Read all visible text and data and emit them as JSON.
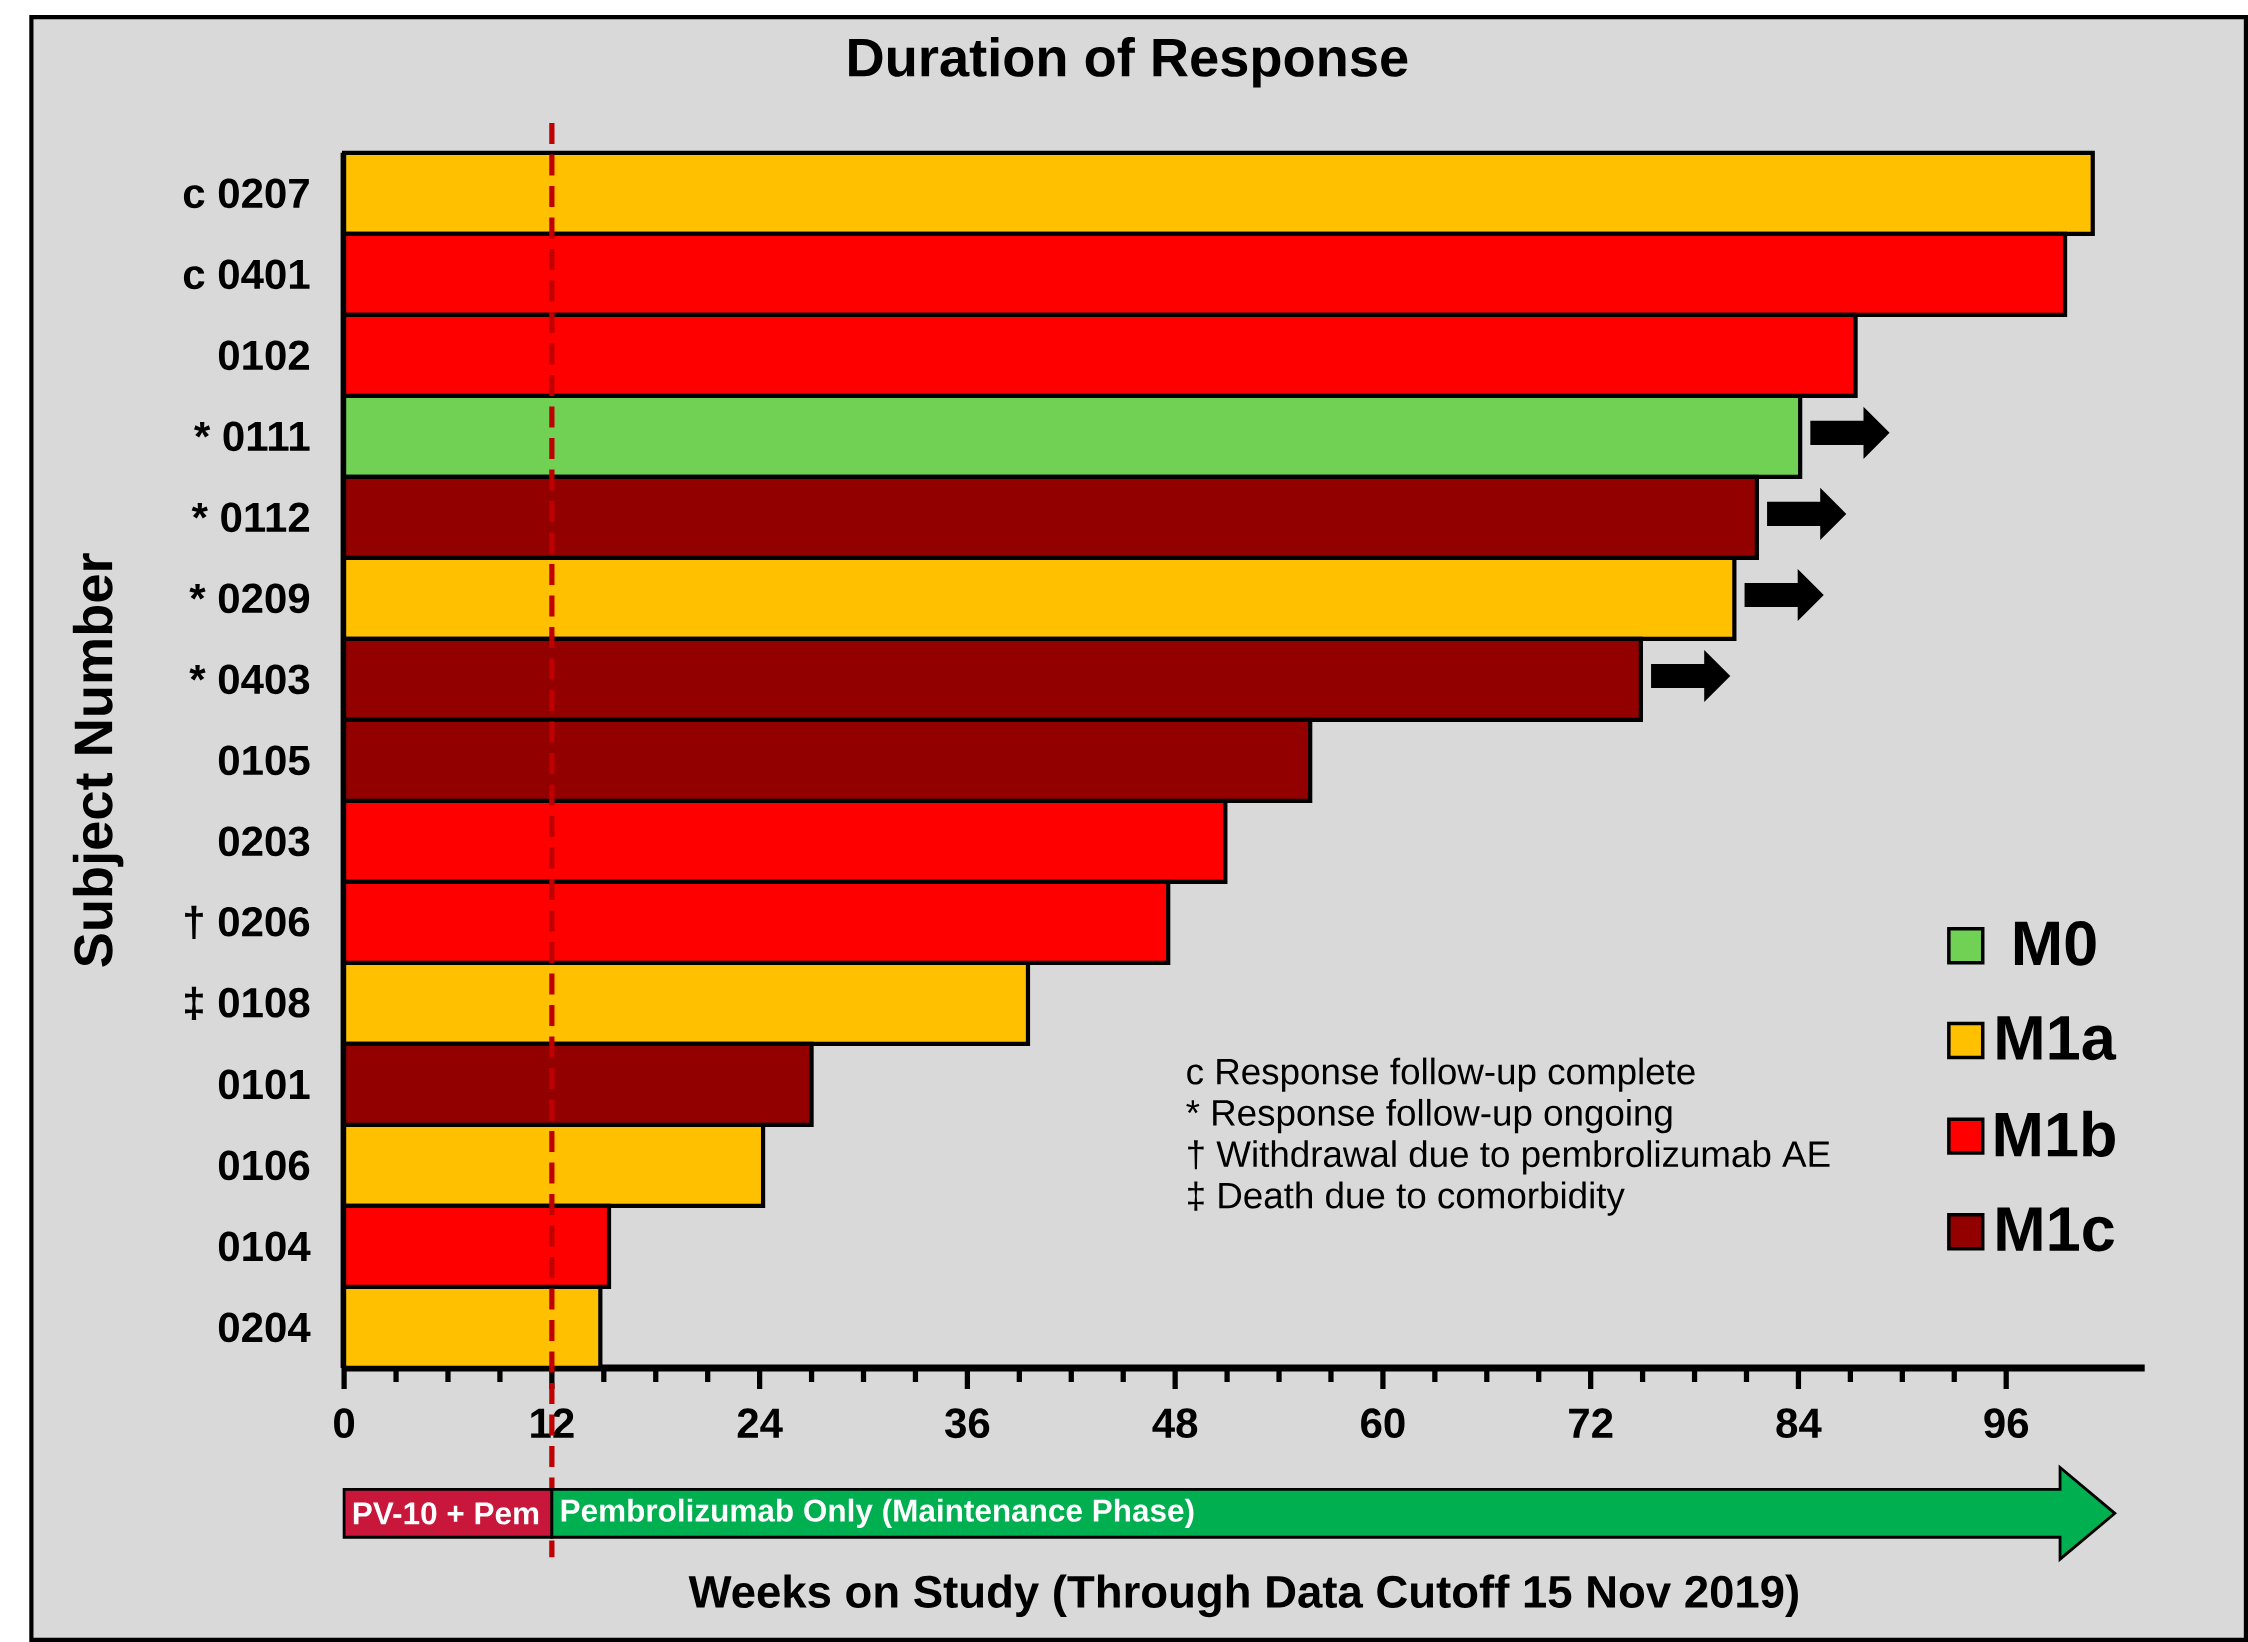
{
  "chart_data": {
    "type": "bar",
    "orientation": "horizontal",
    "title": "Duration of Response",
    "xlabel": "Weeks on Study (Through Data Cutoff 15 Nov 2019)",
    "ylabel": "Subject Number",
    "categories": [
      "c 0207",
      "c 0401",
      "0102",
      "* 0111",
      "* 0112",
      "* 0209",
      "* 0403",
      "0105",
      "0203",
      "† 0206",
      "‡ 0108",
      "0101",
      "0106",
      "0104",
      "0204"
    ],
    "series": [
      {
        "name": "M0",
        "color": "#70d155",
        "values": [
          null,
          null,
          null,
          84.1,
          null,
          null,
          null,
          null,
          null,
          null,
          null,
          null,
          null,
          null,
          null
        ]
      },
      {
        "name": "M1a",
        "color": "#ffc000",
        "values": [
          101,
          null,
          null,
          null,
          null,
          80.3,
          null,
          null,
          null,
          null,
          39.5,
          null,
          24.2,
          null,
          14.8
        ]
      },
      {
        "name": "M1b",
        "color": "#ff0000",
        "values": [
          null,
          99.4,
          87.3,
          null,
          null,
          null,
          null,
          null,
          50.9,
          47.6,
          null,
          null,
          null,
          15.3,
          null
        ]
      },
      {
        "name": "M1c",
        "color": "#920000",
        "values": [
          null,
          null,
          null,
          null,
          81.6,
          null,
          74.9,
          55.8,
          null,
          null,
          null,
          27.0,
          null,
          null,
          null
        ]
      }
    ],
    "xlim": [
      0,
      104
    ],
    "xticks": [
      0,
      12,
      24,
      36,
      48,
      60,
      72,
      84,
      96
    ],
    "legend": "bottom right",
    "ref_lines": [
      {
        "axis": "x",
        "value": 12,
        "color": "#c00000",
        "line_style": "dashed"
      }
    ],
    "annotations": [
      "PV-10 + Pem",
      "Pembrolizumab Only (Maintenance Phase)",
      "c  Response follow-up complete",
      "*  Response follow-up ongoing",
      "†  Withdrawal due to pembrolizumab AE",
      "‡  Death due to comorbidity",
      {
        "text": "➡",
        "x": 84.1,
        "y": "* 0111"
      },
      {
        "text": "➡",
        "x": 81.6,
        "y": "* 0112"
      },
      {
        "text": "➡",
        "x": 80.3,
        "y": "* 0209"
      },
      {
        "text": "➡",
        "x": 74.9,
        "y": "* 0403"
      }
    ]
  }
}
